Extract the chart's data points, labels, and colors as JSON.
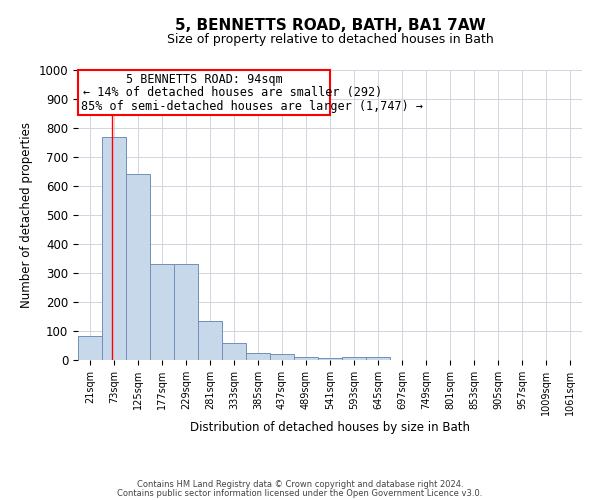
{
  "title": "5, BENNETTS ROAD, BATH, BA1 7AW",
  "subtitle": "Size of property relative to detached houses in Bath",
  "xlabel": "Distribution of detached houses by size in Bath",
  "ylabel": "Number of detached properties",
  "categories": [
    "21sqm",
    "73sqm",
    "125sqm",
    "177sqm",
    "229sqm",
    "281sqm",
    "333sqm",
    "385sqm",
    "437sqm",
    "489sqm",
    "541sqm",
    "593sqm",
    "645sqm",
    "697sqm",
    "749sqm",
    "801sqm",
    "853sqm",
    "905sqm",
    "957sqm",
    "1009sqm",
    "1061sqm"
  ],
  "values": [
    83,
    770,
    640,
    330,
    330,
    133,
    58,
    25,
    20,
    10,
    8,
    10,
    10,
    0,
    0,
    0,
    0,
    0,
    0,
    0,
    0
  ],
  "bar_color": "#c8d8eb",
  "bar_edgecolor": "#7090b8",
  "ylim": [
    0,
    1000
  ],
  "yticks": [
    0,
    100,
    200,
    300,
    400,
    500,
    600,
    700,
    800,
    900,
    1000
  ],
  "red_line_x": 1.42,
  "annotation_text_line1": "5 BENNETTS ROAD: 94sqm",
  "annotation_text_line2": "← 14% of detached houses are smaller (292)",
  "annotation_text_line3": "85% of semi-detached houses are larger (1,747) →",
  "footer_line1": "Contains HM Land Registry data © Crown copyright and database right 2024.",
  "footer_line2": "Contains public sector information licensed under the Open Government Licence v3.0.",
  "background_color": "#ffffff",
  "grid_color": "#c8d0dc",
  "title_fontsize": 11,
  "subtitle_fontsize": 9,
  "annot_fontsize": 8.5
}
